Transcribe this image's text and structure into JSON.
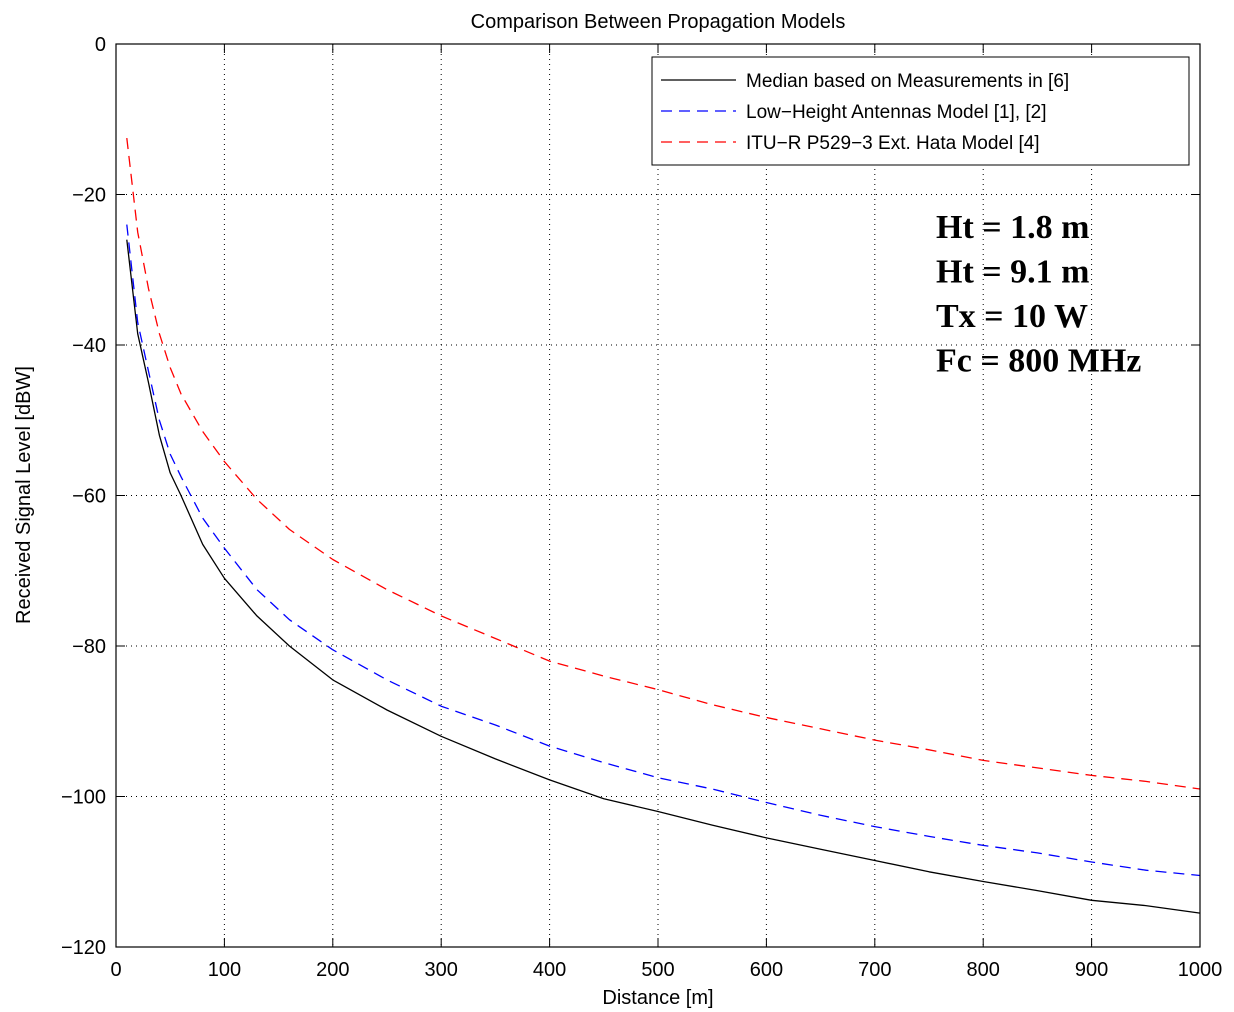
{
  "chart_data": {
    "type": "line",
    "title": "Comparison Between Propagation Models",
    "xlabel": "Distance [m]",
    "ylabel": "Received Signal Level [dBW]",
    "xlim": [
      0,
      1000
    ],
    "ylim": [
      -120,
      0
    ],
    "xticks": [
      0,
      100,
      200,
      300,
      400,
      500,
      600,
      700,
      800,
      900,
      1000
    ],
    "yticks": [
      0,
      -20,
      -40,
      -60,
      -80,
      -100,
      -120
    ],
    "grid": true,
    "legend_position": "top-right",
    "annotations": [
      "Ht = 1.8 m",
      "Ht = 9.1 m",
      "Tx = 10 W",
      "Fc = 800 MHz"
    ],
    "series": [
      {
        "name": "Median based on Measurements in [6]",
        "color": "#000000",
        "style": "solid",
        "x": [
          10,
          20,
          30,
          40,
          50,
          60,
          80,
          100,
          130,
          160,
          200,
          250,
          300,
          350,
          400,
          450,
          500,
          550,
          600,
          650,
          700,
          750,
          800,
          850,
          900,
          950,
          1000
        ],
        "y": [
          -26,
          -38.5,
          -45,
          -52,
          -57,
          -60,
          -66.5,
          -71,
          -76,
          -80,
          -84.5,
          -88.5,
          -92,
          -95,
          -97.8,
          -100.3,
          -102,
          -103.8,
          -105.5,
          -107,
          -108.5,
          -110,
          -111.3,
          -112.5,
          -113.8,
          -114.5,
          -115.5
        ]
      },
      {
        "name": "Low−Height Antennas Model [1], [2]",
        "color": "#0000ff",
        "style": "dashed",
        "x": [
          10,
          20,
          30,
          40,
          50,
          60,
          80,
          100,
          130,
          160,
          200,
          250,
          300,
          350,
          400,
          450,
          500,
          550,
          600,
          650,
          700,
          750,
          800,
          850,
          900,
          950,
          1000
        ],
        "y": [
          -24,
          -37,
          -43.5,
          -50,
          -54.5,
          -57.5,
          -63,
          -67,
          -72.5,
          -76.5,
          -80.5,
          -84.5,
          -88,
          -90.5,
          -93.3,
          -95.5,
          -97.5,
          -99,
          -100.8,
          -102.5,
          -104,
          -105.3,
          -106.5,
          -107.5,
          -108.7,
          -109.8,
          -110.5
        ]
      },
      {
        "name": "ITU−R P529−3 Ext. Hata Model [4]",
        "color": "#ff0000",
        "style": "dashed",
        "x": [
          10,
          20,
          30,
          40,
          50,
          60,
          80,
          100,
          130,
          160,
          200,
          250,
          300,
          350,
          400,
          450,
          500,
          550,
          600,
          650,
          700,
          750,
          800,
          850,
          900,
          950,
          1000
        ],
        "y": [
          -12.5,
          -25,
          -32.5,
          -38.5,
          -43,
          -46.5,
          -51.5,
          -55.5,
          -60.5,
          -64.5,
          -68.5,
          -72.5,
          -76,
          -79,
          -82,
          -84,
          -85.8,
          -87.8,
          -89.5,
          -91,
          -92.5,
          -93.8,
          -95.2,
          -96.2,
          -97.2,
          -98,
          -99
        ]
      }
    ]
  }
}
